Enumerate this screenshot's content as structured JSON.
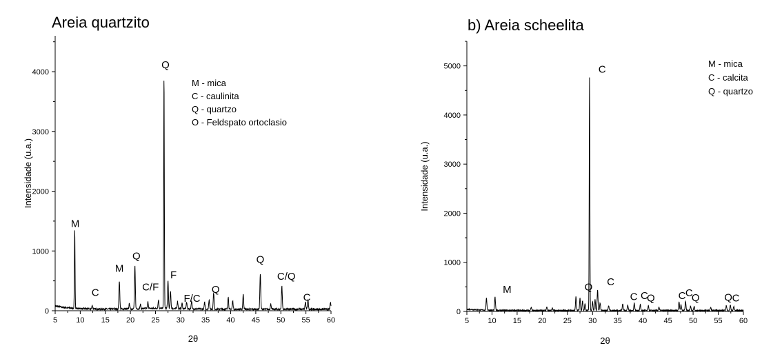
{
  "chart_data": [
    {
      "type": "line",
      "title": "Areia quartzito",
      "xlabel": "2θ",
      "ylabel": "Intensidade (u.a.)",
      "xlim": [
        5,
        60
      ],
      "ylim": [
        0,
        4600
      ],
      "xticks": [
        5,
        10,
        15,
        20,
        25,
        30,
        35,
        40,
        45,
        50,
        55,
        60
      ],
      "yticks": [
        0,
        1000,
        2000,
        3000,
        4000
      ],
      "grid": false,
      "legend_position": "top-right",
      "legend": [
        "M - mica",
        "C - caulinita",
        "Q - quartzo",
        "O - Feldspato ortoclasio"
      ],
      "peaks": [
        {
          "x": 8.9,
          "y": 1310
        },
        {
          "x": 12.4,
          "y": 60
        },
        {
          "x": 17.8,
          "y": 470
        },
        {
          "x": 19.8,
          "y": 90
        },
        {
          "x": 20.9,
          "y": 710
        },
        {
          "x": 22.0,
          "y": 70
        },
        {
          "x": 23.5,
          "y": 110
        },
        {
          "x": 25.6,
          "y": 140
        },
        {
          "x": 26.7,
          "y": 3900
        },
        {
          "x": 27.5,
          "y": 460
        },
        {
          "x": 28.0,
          "y": 280
        },
        {
          "x": 29.4,
          "y": 120
        },
        {
          "x": 30.3,
          "y": 90
        },
        {
          "x": 31.2,
          "y": 110
        },
        {
          "x": 32.2,
          "y": 130
        },
        {
          "x": 34.8,
          "y": 110
        },
        {
          "x": 35.7,
          "y": 160
        },
        {
          "x": 36.6,
          "y": 280
        },
        {
          "x": 39.5,
          "y": 210
        },
        {
          "x": 40.4,
          "y": 140
        },
        {
          "x": 42.5,
          "y": 250
        },
        {
          "x": 45.9,
          "y": 600
        },
        {
          "x": 48.0,
          "y": 90
        },
        {
          "x": 50.2,
          "y": 390
        },
        {
          "x": 54.9,
          "y": 120
        },
        {
          "x": 55.4,
          "y": 160
        },
        {
          "x": 59.9,
          "y": 110
        }
      ],
      "annotations": [
        {
          "text": "M",
          "x": 9.0,
          "y": 1400
        },
        {
          "text": "C",
          "x": 13.0,
          "y": 250
        },
        {
          "text": "M",
          "x": 17.8,
          "y": 650
        },
        {
          "text": "Q",
          "x": 21.2,
          "y": 860
        },
        {
          "text": "C/F",
          "x": 24.0,
          "y": 340
        },
        {
          "text": "Q",
          "x": 27.0,
          "y": 4060
        },
        {
          "text": "F",
          "x": 28.6,
          "y": 540
        },
        {
          "text": "F/C",
          "x": 32.3,
          "y": 150
        },
        {
          "text": "Q",
          "x": 37.0,
          "y": 300
        },
        {
          "text": "Q",
          "x": 45.9,
          "y": 800
        },
        {
          "text": "C/Q",
          "x": 51.1,
          "y": 520
        },
        {
          "text": "C",
          "x": 55.2,
          "y": 170
        }
      ]
    },
    {
      "type": "line",
      "title": "b) Areia scheelita",
      "xlabel": "2θ",
      "ylabel": "Intensidade (u.a.)",
      "xlim": [
        5,
        60
      ],
      "ylim": [
        0,
        5500
      ],
      "xticks": [
        5,
        10,
        15,
        20,
        25,
        30,
        35,
        40,
        45,
        50,
        55,
        60
      ],
      "yticks": [
        0,
        1000,
        2000,
        3000,
        4000,
        5000
      ],
      "grid": false,
      "legend_position": "top-right",
      "legend": [
        "M - mica",
        "C - calcita",
        "Q - quartzo"
      ],
      "peaks": [
        {
          "x": 8.9,
          "y": 240
        },
        {
          "x": 10.6,
          "y": 270
        },
        {
          "x": 17.8,
          "y": 60
        },
        {
          "x": 20.9,
          "y": 70
        },
        {
          "x": 22.0,
          "y": 50
        },
        {
          "x": 26.7,
          "y": 280
        },
        {
          "x": 27.5,
          "y": 250
        },
        {
          "x": 28.0,
          "y": 190
        },
        {
          "x": 28.5,
          "y": 140
        },
        {
          "x": 29.4,
          "y": 4760
        },
        {
          "x": 30.0,
          "y": 180
        },
        {
          "x": 30.5,
          "y": 220
        },
        {
          "x": 31.0,
          "y": 420
        },
        {
          "x": 31.5,
          "y": 150
        },
        {
          "x": 33.2,
          "y": 90
        },
        {
          "x": 36.0,
          "y": 140
        },
        {
          "x": 37.0,
          "y": 110
        },
        {
          "x": 38.3,
          "y": 150
        },
        {
          "x": 39.5,
          "y": 120
        },
        {
          "x": 41.1,
          "y": 90
        },
        {
          "x": 43.2,
          "y": 70
        },
        {
          "x": 47.2,
          "y": 180
        },
        {
          "x": 47.6,
          "y": 120
        },
        {
          "x": 48.5,
          "y": 190
        },
        {
          "x": 49.5,
          "y": 90
        },
        {
          "x": 50.2,
          "y": 80
        },
        {
          "x": 53.5,
          "y": 60
        },
        {
          "x": 56.6,
          "y": 100
        },
        {
          "x": 57.4,
          "y": 110
        },
        {
          "x": 58.1,
          "y": 80
        }
      ],
      "annotations": [
        {
          "text": "M",
          "x": 13.0,
          "y": 380
        },
        {
          "text": "Q",
          "x": 29.2,
          "y": 430
        },
        {
          "text": "C",
          "x": 31.9,
          "y": 4860
        },
        {
          "text": "C",
          "x": 33.6,
          "y": 530
        },
        {
          "text": "C",
          "x": 38.2,
          "y": 230
        },
        {
          "text": "C",
          "x": 40.3,
          "y": 250
        },
        {
          "text": "Q",
          "x": 41.6,
          "y": 200
        },
        {
          "text": "C",
          "x": 47.8,
          "y": 250
        },
        {
          "text": "C",
          "x": 49.2,
          "y": 310
        },
        {
          "text": "Q",
          "x": 50.5,
          "y": 210
        },
        {
          "text": "Q",
          "x": 57.0,
          "y": 220
        },
        {
          "text": "C",
          "x": 58.5,
          "y": 200
        }
      ]
    }
  ]
}
